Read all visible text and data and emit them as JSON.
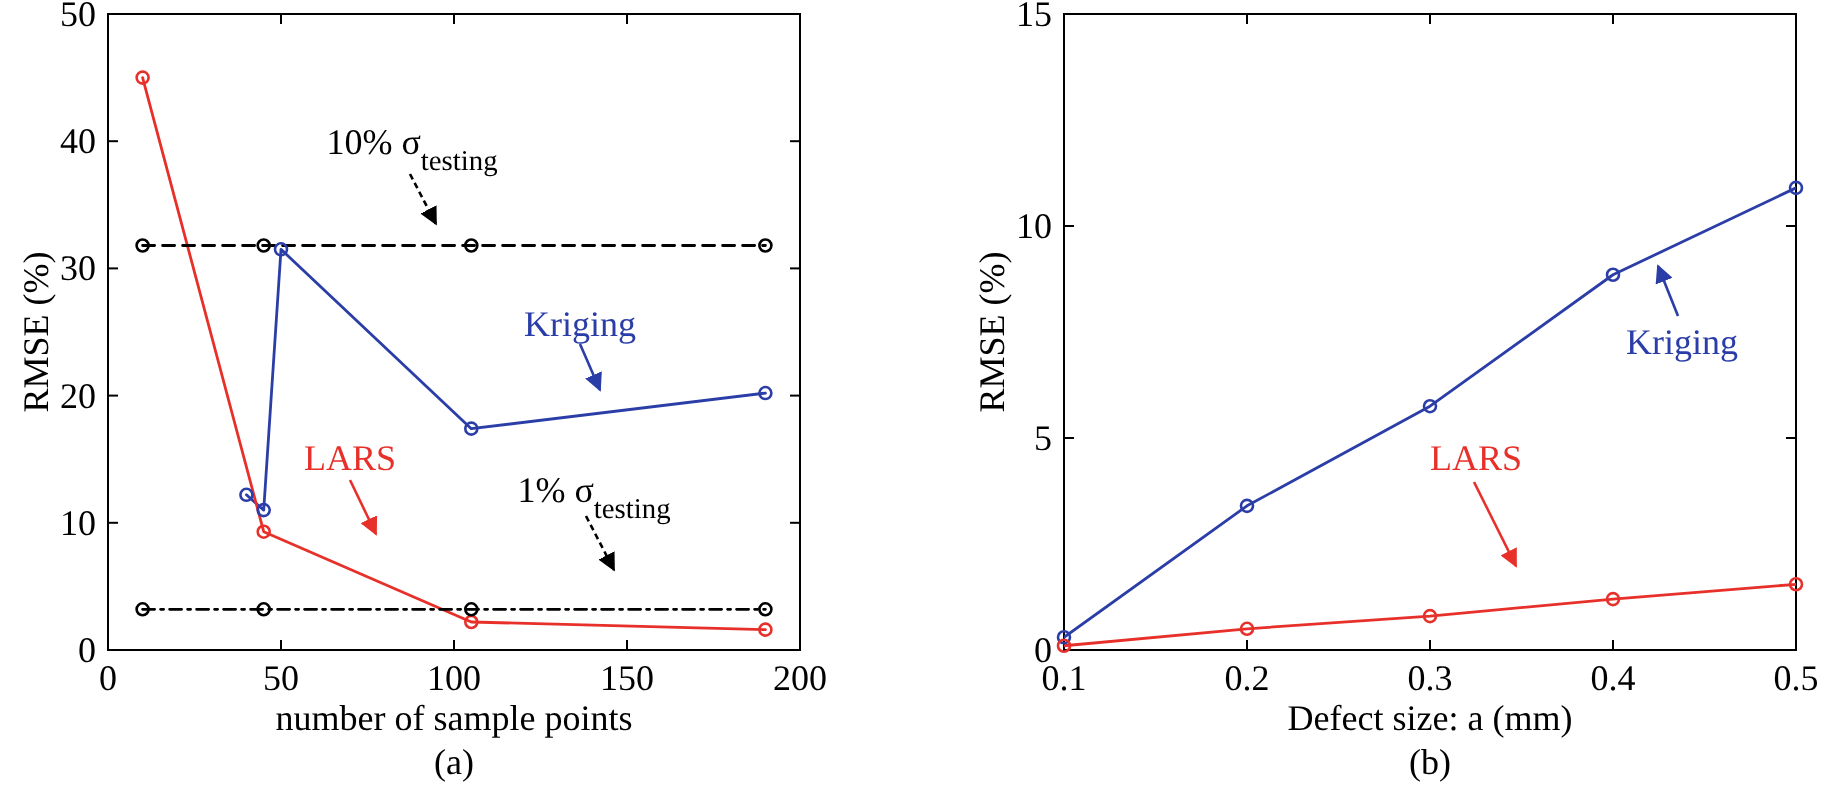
{
  "chart_data": [
    {
      "type": "line",
      "xlabel": "number of sample points",
      "ylabel": "RMSE (%)",
      "xlim": [
        0,
        200
      ],
      "ylim": [
        0,
        50
      ],
      "xticks": [
        0,
        50,
        100,
        150,
        200
      ],
      "yticks": [
        0,
        10,
        20,
        30,
        40,
        50
      ],
      "grid": false,
      "marker": "circle",
      "series": [
        {
          "color": "#2b3ea8",
          "x": [
            40,
            45,
            50,
            105,
            190
          ],
          "values": [
            12.2,
            11,
            31.5,
            17.4,
            20.2
          ]
        },
        {
          "color": "#e8302a",
          "x": [
            10,
            45,
            105,
            190
          ],
          "values": [
            45,
            9.3,
            2.2,
            1.6
          ]
        },
        {
          "color": "#000000",
          "x": [
            10,
            45,
            105,
            190
          ],
          "values": [
            31.8,
            31.8,
            31.8,
            31.8
          ],
          "line_style": "dashed"
        },
        {
          "color": "#000000",
          "x": [
            10,
            45,
            105,
            190
          ],
          "values": [
            3.2,
            3.2,
            3.2,
            3.2
          ],
          "line_style": "dotted"
        }
      ],
      "annotations": [
        "10% σ$_{testing}$",
        "Kriging",
        "LARS",
        "1% σ$_{testing}$",
        "(a)"
      ]
    },
    {
      "type": "line",
      "xlabel": "Defect size: a (mm)",
      "ylabel": "RMSE (%)",
      "xlim": [
        0.1,
        0.5
      ],
      "ylim": [
        0,
        15
      ],
      "xticks": [
        0.1,
        0.2,
        0.3,
        0.4,
        0.5
      ],
      "yticks": [
        0,
        5,
        10,
        15
      ],
      "grid": false,
      "marker": "circle",
      "series": [
        {
          "color": "#2b3ea8",
          "x": [
            0.1,
            0.2,
            0.3,
            0.4,
            0.5
          ],
          "values": [
            0.3,
            3.4,
            5.75,
            8.85,
            10.9
          ]
        },
        {
          "color": "#e8302a",
          "x": [
            0.1,
            0.2,
            0.3,
            0.4,
            0.5
          ],
          "values": [
            0.1,
            0.5,
            0.8,
            1.2,
            1.55
          ]
        }
      ],
      "annotations": [
        "Kriging",
        "LARS",
        "(b)"
      ]
    }
  ]
}
